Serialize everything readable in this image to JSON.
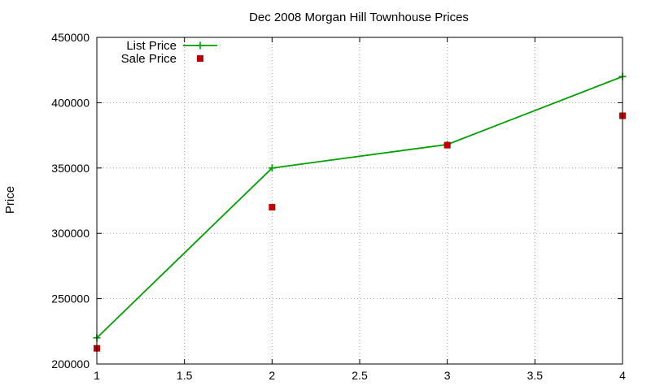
{
  "chart_data": {
    "type": "line",
    "title": "Dec 2008 Morgan Hill Townhouse Prices",
    "xlabel": "",
    "ylabel": "Price",
    "xlim": [
      1,
      4
    ],
    "ylim": [
      200000,
      450000
    ],
    "xticks": [
      "1",
      "1.5",
      "2",
      "2.5",
      "3",
      "3.5",
      "4"
    ],
    "xtick_values": [
      1,
      1.5,
      2,
      2.5,
      3,
      3.5,
      4
    ],
    "yticks": [
      "200000",
      "250000",
      "300000",
      "350000",
      "400000",
      "450000"
    ],
    "ytick_values": [
      200000,
      250000,
      300000,
      350000,
      400000,
      450000
    ],
    "grid": true,
    "legend_position": "top-left",
    "series": [
      {
        "name": "List Price",
        "style": "lines+points",
        "marker": "plus",
        "color": "#00a000",
        "points": [
          {
            "x": 1,
            "y": 220000
          },
          {
            "x": 2,
            "y": 350000
          },
          {
            "x": 3,
            "y": 368000
          },
          {
            "x": 4,
            "y": 420000
          }
        ]
      },
      {
        "name": "Sale Price",
        "style": "points",
        "marker": "square",
        "color": "#c00000",
        "points": [
          {
            "x": 1,
            "y": 212000
          },
          {
            "x": 2,
            "y": 320000
          },
          {
            "x": 3,
            "y": 367500
          },
          {
            "x": 4,
            "y": 390000
          }
        ]
      }
    ]
  }
}
